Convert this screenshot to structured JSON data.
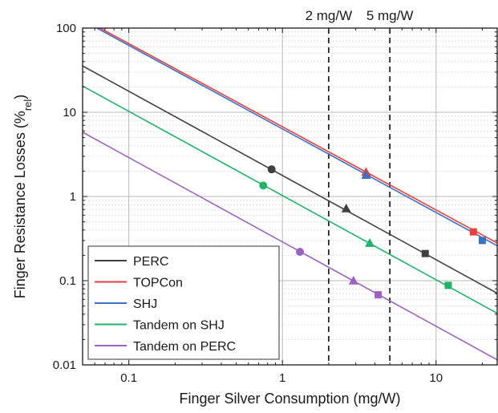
{
  "chart_data": {
    "type": "line",
    "title": "",
    "xlabel": "Finger Silver Consumption (mg/W)",
    "ylabel_main": "Finger Resistance Losses (%",
    "ylabel_sub": "rel",
    "ylabel_close": ")",
    "xscale": "log",
    "yscale": "log",
    "xlim": [
      0.05,
      25
    ],
    "ylim": [
      0.01,
      100
    ],
    "x_ticks": [
      0.1,
      1,
      10
    ],
    "x_tick_labels": [
      "0.1",
      "1",
      "10"
    ],
    "y_ticks": [
      0.01,
      0.1,
      1,
      10,
      100
    ],
    "y_tick_labels": [
      "0.01",
      "0.1",
      "1",
      "10",
      "100"
    ],
    "grid": true,
    "legend_position": "bottom-left",
    "reference_lines": [
      {
        "x": 2,
        "label": "2 mg/W"
      },
      {
        "x": 5,
        "label": "5 mg/W"
      }
    ],
    "series": [
      {
        "name": "PERC",
        "color": "#404040",
        "line": [
          [
            0.05,
            35.5
          ],
          [
            25,
            0.071
          ]
        ],
        "markers": [
          {
            "shape": "circle",
            "x": 0.85,
            "y": 2.1
          },
          {
            "shape": "triangle",
            "x": 2.6,
            "y": 0.72
          },
          {
            "shape": "square",
            "x": 8.5,
            "y": 0.21
          }
        ]
      },
      {
        "name": "TOPCon",
        "color": "#e8423f",
        "line": [
          [
            0.065,
            100
          ],
          [
            25,
            0.28
          ]
        ],
        "markers": [
          {
            "shape": "triangle",
            "x": 3.5,
            "y": 1.95
          },
          {
            "shape": "square",
            "x": 17.5,
            "y": 0.38
          }
        ]
      },
      {
        "name": "SHJ",
        "color": "#3f6fc4",
        "line": [
          [
            0.062,
            100
          ],
          [
            25,
            0.26
          ]
        ],
        "markers": [
          {
            "shape": "triangle",
            "x": 3.5,
            "y": 1.8
          },
          {
            "shape": "square",
            "x": 20,
            "y": 0.3
          }
        ]
      },
      {
        "name": "Tandem on SHJ",
        "color": "#23b26b",
        "line": [
          [
            0.05,
            20.5
          ],
          [
            25,
            0.041
          ]
        ],
        "markers": [
          {
            "shape": "circle",
            "x": 0.75,
            "y": 1.35
          },
          {
            "shape": "triangle",
            "x": 3.7,
            "y": 0.28
          },
          {
            "shape": "square",
            "x": 12,
            "y": 0.088
          }
        ]
      },
      {
        "name": "Tandem on PERC",
        "color": "#9b62c0",
        "line": [
          [
            0.05,
            5.8
          ],
          [
            25,
            0.0115
          ]
        ],
        "markers": [
          {
            "shape": "circle",
            "x": 1.3,
            "y": 0.22
          },
          {
            "shape": "triangle",
            "x": 2.9,
            "y": 0.1
          },
          {
            "shape": "square",
            "x": 4.2,
            "y": 0.068
          }
        ]
      }
    ]
  }
}
